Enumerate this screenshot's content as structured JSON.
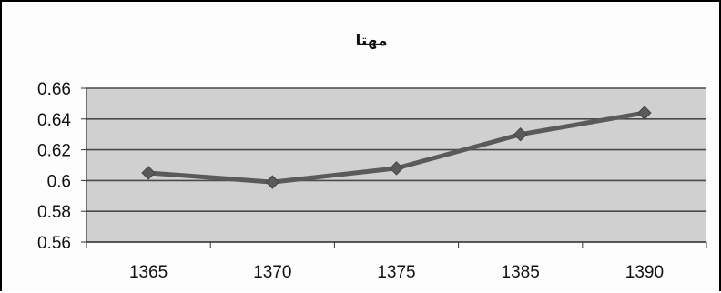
{
  "chart_data": {
    "type": "line",
    "title": "مهتا",
    "xlabel": "",
    "ylabel": "",
    "categories": [
      "1365",
      "1370",
      "1375",
      "1385",
      "1390"
    ],
    "series": [
      {
        "values": [
          0.605,
          0.599,
          0.608,
          0.63,
          0.644
        ]
      }
    ],
    "ylim": [
      0.56,
      0.66
    ],
    "yticks": [
      "0.56",
      "0.58",
      "0.6",
      "0.62",
      "0.64",
      "0.66"
    ],
    "grid": true,
    "legend": "none",
    "colors": {
      "plot_area": "#d0d0d0",
      "gridline": "#4a4a4a",
      "series_line": "#5a5a5a",
      "marker": "#5a5a5a"
    }
  }
}
